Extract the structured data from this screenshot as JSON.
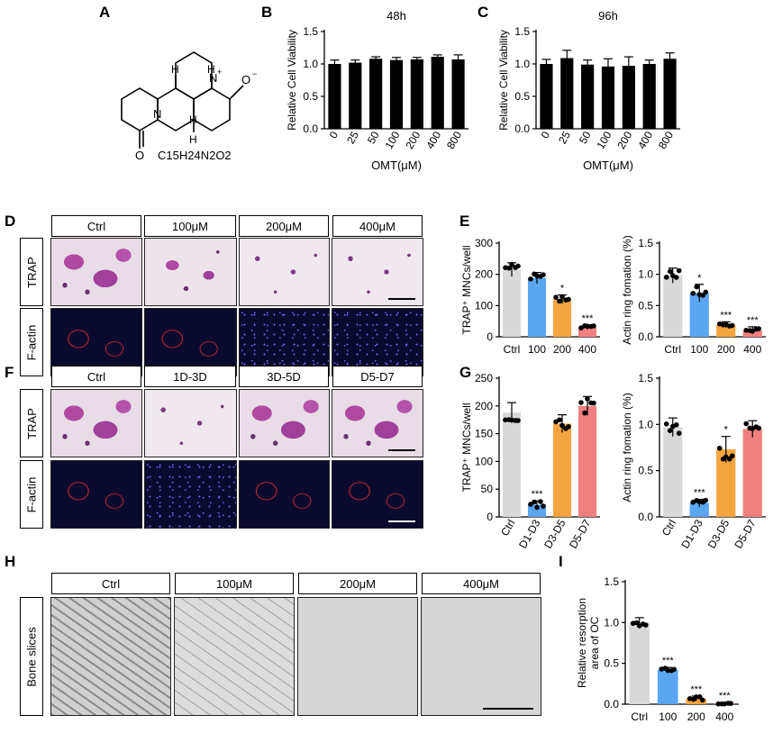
{
  "panels": {
    "A": "A",
    "B": "B",
    "C": "C",
    "D": "D",
    "E": "E",
    "F": "F",
    "G": "G",
    "H": "H",
    "I": "I"
  },
  "panelA": {
    "formula": "C15H24N2O2",
    "h_labels": [
      "H",
      "H",
      "H",
      "H"
    ],
    "n_plus": "N",
    "o_minus": "O",
    "n_ring": "N",
    "o_ketone": "O"
  },
  "rowD": {
    "headers": [
      "Ctrl",
      "100μM",
      "200μM",
      "400μM"
    ],
    "rows": [
      "TRAP",
      "F-actin"
    ]
  },
  "rowF": {
    "headers": [
      "Ctrl",
      "1D-3D",
      "3D-5D",
      "D5-D7"
    ],
    "rows": [
      "TRAP",
      "F-actin"
    ]
  },
  "rowH": {
    "headers": [
      "Ctrl",
      "100μM",
      "200μM",
      "400μM"
    ],
    "row": "Bone slices"
  },
  "chart_data": [
    {
      "id": "B",
      "type": "bar",
      "title": "48h",
      "categories": [
        "0",
        "25",
        "50",
        "100",
        "200",
        "400",
        "800"
      ],
      "values": [
        1.0,
        1.02,
        1.08,
        1.06,
        1.07,
        1.11,
        1.07
      ],
      "errors": [
        0.06,
        0.04,
        0.03,
        0.04,
        0.03,
        0.03,
        0.07
      ],
      "xlabel": "OMT(μM)",
      "ylabel": "Relative Cell Viability",
      "ylim": [
        0,
        1.5
      ],
      "yticks": [
        "0.0",
        "0.5",
        "1.0",
        "1.5"
      ],
      "color": "#000000"
    },
    {
      "id": "C",
      "type": "bar",
      "title": "96h",
      "categories": [
        "0",
        "25",
        "50",
        "100",
        "200",
        "400",
        "800"
      ],
      "values": [
        1.0,
        1.09,
        0.99,
        0.96,
        0.97,
        1.0,
        1.08
      ],
      "errors": [
        0.07,
        0.12,
        0.07,
        0.12,
        0.14,
        0.06,
        0.09
      ],
      "xlabel": "OMT(μM)",
      "ylabel": "Relative Cell Viability",
      "ylim": [
        0,
        1.5
      ],
      "yticks": [
        "0.0",
        "0.5",
        "1.0",
        "1.5"
      ],
      "color": "#000000"
    },
    {
      "id": "E1",
      "type": "bar",
      "categories": [
        "Ctrl",
        "100",
        "200",
        "400"
      ],
      "values": [
        215,
        188,
        120,
        30
      ],
      "errors": [
        22,
        18,
        14,
        7
      ],
      "sig": [
        "",
        "",
        "*",
        "***"
      ],
      "colors": [
        "#d9d9d9",
        "#5aa6f0",
        "#f5a442",
        "#f08080"
      ],
      "xlabel": "",
      "ylabel": "TRAP⁺ MNCs/well",
      "ylim": [
        0,
        300
      ],
      "yticks": [
        "0",
        "100",
        "200",
        "300"
      ]
    },
    {
      "id": "E2",
      "type": "bar",
      "categories": [
        "Ctrl",
        "100",
        "200",
        "400"
      ],
      "values": [
        0.98,
        0.7,
        0.19,
        0.1
      ],
      "errors": [
        0.12,
        0.14,
        0.05,
        0.06
      ],
      "sig": [
        "",
        "*",
        "***",
        "***"
      ],
      "colors": [
        "#d9d9d9",
        "#5aa6f0",
        "#f5a442",
        "#f08080"
      ],
      "xlabel": "",
      "ylabel": "Actin ring fomation (%)",
      "ylim": [
        0,
        1.5
      ],
      "yticks": [
        "0.0",
        "0.5",
        "1.0",
        "1.5"
      ]
    },
    {
      "id": "G1",
      "type": "bar",
      "categories": [
        "Ctrl",
        "D1-D3",
        "D3-D5",
        "D5-D7"
      ],
      "values": [
        188,
        22,
        168,
        200
      ],
      "errors": [
        18,
        7,
        16,
        17
      ],
      "sig": [
        "",
        "***",
        "",
        ""
      ],
      "colors": [
        "#d9d9d9",
        "#5aa6f0",
        "#f5a442",
        "#f08080"
      ],
      "xlabel": "",
      "ylabel": "TRAP⁺ MNCs/well",
      "ylim": [
        0,
        250
      ],
      "yticks": [
        "0",
        "50",
        "100",
        "150",
        "200",
        "250"
      ]
    },
    {
      "id": "G2",
      "type": "bar",
      "categories": [
        "Ctrl",
        "D1-D3",
        "D3-D5",
        "D5-D7"
      ],
      "values": [
        0.97,
        0.15,
        0.73,
        0.95
      ],
      "errors": [
        0.1,
        0.04,
        0.14,
        0.09
      ],
      "sig": [
        "",
        "***",
        "*",
        ""
      ],
      "colors": [
        "#d9d9d9",
        "#5aa6f0",
        "#f5a442",
        "#f08080"
      ],
      "xlabel": "",
      "ylabel": "Actin ring fomation (%)",
      "ylim": [
        0,
        1.5
      ],
      "yticks": [
        "0.0",
        "0.5",
        "1.0",
        "1.5"
      ]
    },
    {
      "id": "I",
      "type": "bar",
      "categories": [
        "Ctrl",
        "100",
        "200",
        "400"
      ],
      "values": [
        1.0,
        0.42,
        0.07,
        0.01
      ],
      "errors": [
        0.06,
        0.03,
        0.03,
        0.01
      ],
      "sig": [
        "",
        "***",
        "***",
        "***"
      ],
      "colors": [
        "#d9d9d9",
        "#5aa6f0",
        "#f5a442",
        "#f08080"
      ],
      "xlabel": "",
      "ylabel": "Relative resorption area of OC",
      "ylim": [
        0,
        1.5
      ],
      "yticks": [
        "0.0",
        "0.5",
        "1.0",
        "1.5"
      ]
    }
  ]
}
